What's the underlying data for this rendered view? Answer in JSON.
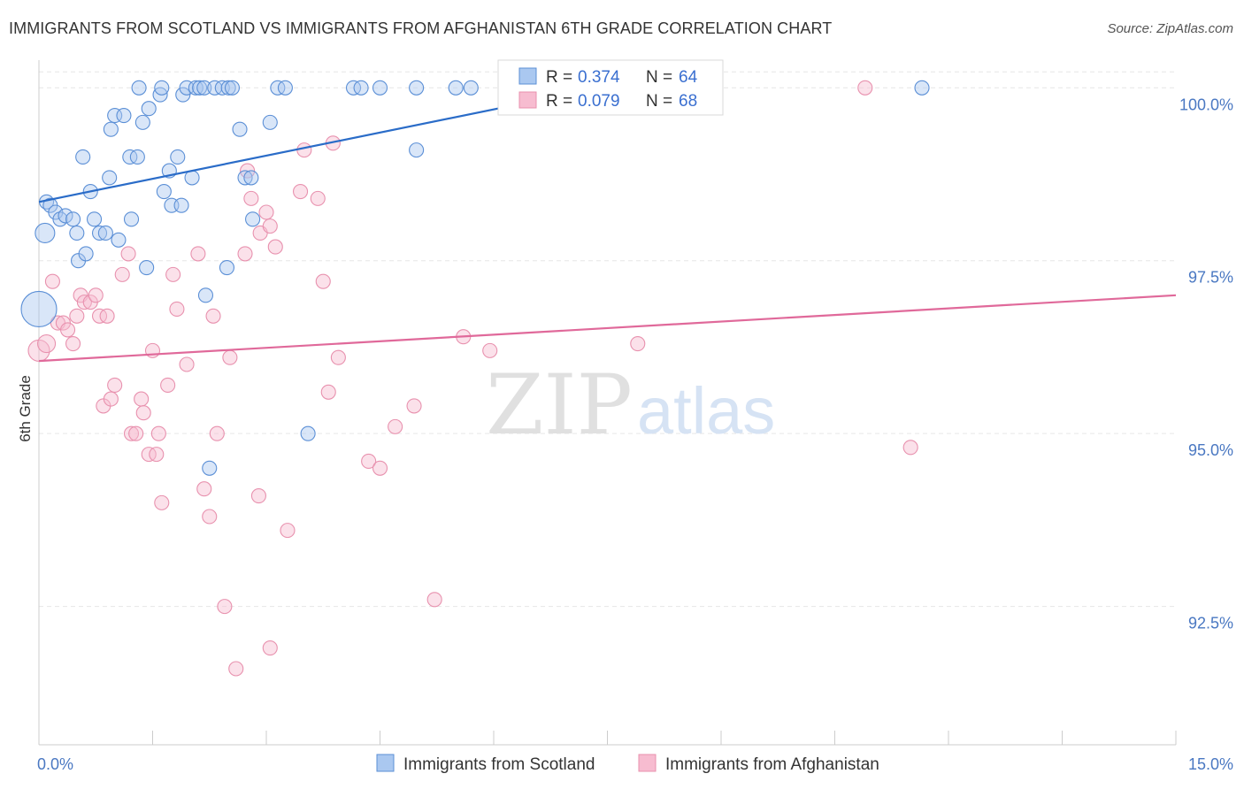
{
  "title": "IMMIGRANTS FROM SCOTLAND VS IMMIGRANTS FROM AFGHANISTAN 6TH GRADE CORRELATION CHART",
  "source": "Source: ZipAtlas.com",
  "watermark": {
    "zip": "ZIP",
    "atlas": "atlas"
  },
  "colors": {
    "scotland_fill": "#aac8f0",
    "scotland_stroke": "#5b8fd6",
    "scotland_line": "#2a6cc8",
    "afghanistan_fill": "#f7bcd0",
    "afghanistan_stroke": "#e891ae",
    "afghanistan_line": "#e0699a",
    "tick_text": "#4a78c2",
    "grid": "#e6e6e6"
  },
  "legend": {
    "rows": [
      {
        "r_label": "R =",
        "r_value": "0.374",
        "n_label": "N =",
        "n_value": "64"
      },
      {
        "r_label": "R =",
        "r_value": "0.079",
        "n_label": "N =",
        "n_value": "68"
      }
    ]
  },
  "chart_data": {
    "type": "scatter",
    "title": "IMMIGRANTS FROM SCOTLAND VS IMMIGRANTS FROM AFGHANISTAN 6TH GRADE CORRELATION CHART",
    "xlabel": "",
    "ylabel": "6th Grade",
    "xlim": [
      0,
      15
    ],
    "ylim": [
      90.5,
      100.4
    ],
    "x_tick_labels": [
      "0.0%",
      "15.0%"
    ],
    "y_ticks": [
      92.5,
      95.0,
      97.5,
      100.0
    ],
    "y_tick_labels": [
      "92.5%",
      "95.0%",
      "97.5%",
      "100.0%"
    ],
    "grid": true,
    "legend_position": "bottom",
    "series": [
      {
        "name": "Immigrants from Scotland",
        "trend": {
          "x": [
            0.0,
            7.4
          ],
          "y": [
            98.35,
            100.0
          ]
        },
        "points": [
          [
            0.0,
            96.8,
            20
          ],
          [
            0.08,
            97.9,
            11
          ],
          [
            0.1,
            98.35,
            8
          ],
          [
            0.15,
            98.3,
            8
          ],
          [
            0.22,
            98.2,
            8
          ],
          [
            0.28,
            98.1,
            8
          ],
          [
            0.35,
            98.15,
            8
          ],
          [
            0.45,
            98.1,
            8
          ],
          [
            0.5,
            97.9,
            8
          ],
          [
            0.52,
            97.5,
            8
          ],
          [
            0.58,
            99.0,
            8
          ],
          [
            0.62,
            97.6,
            8
          ],
          [
            0.68,
            98.5,
            8
          ],
          [
            0.73,
            98.1,
            8
          ],
          [
            0.8,
            97.9,
            8
          ],
          [
            0.88,
            97.9,
            8
          ],
          [
            0.93,
            98.7,
            8
          ],
          [
            0.95,
            99.4,
            8
          ],
          [
            1.0,
            99.6,
            8
          ],
          [
            1.05,
            97.8,
            8
          ],
          [
            1.12,
            99.6,
            8
          ],
          [
            1.2,
            99.0,
            8
          ],
          [
            1.22,
            98.1,
            8
          ],
          [
            1.3,
            99.0,
            8
          ],
          [
            1.32,
            100.0,
            8
          ],
          [
            1.37,
            99.5,
            8
          ],
          [
            1.42,
            97.4,
            8
          ],
          [
            1.45,
            99.7,
            8
          ],
          [
            1.6,
            99.9,
            8
          ],
          [
            1.62,
            100.0,
            8
          ],
          [
            1.65,
            98.5,
            8
          ],
          [
            1.72,
            98.8,
            8
          ],
          [
            1.75,
            98.3,
            8
          ],
          [
            1.83,
            99.0,
            8
          ],
          [
            1.88,
            98.3,
            8
          ],
          [
            1.9,
            99.9,
            8
          ],
          [
            1.95,
            100.0,
            8
          ],
          [
            2.02,
            98.7,
            8
          ],
          [
            2.07,
            100.0,
            8
          ],
          [
            2.12,
            100.0,
            8
          ],
          [
            2.18,
            100.0,
            8
          ],
          [
            2.2,
            97.0,
            8
          ],
          [
            2.25,
            94.5,
            8
          ],
          [
            2.32,
            100.0,
            8
          ],
          [
            2.42,
            100.0,
            8
          ],
          [
            2.48,
            97.4,
            8
          ],
          [
            2.5,
            100.0,
            8
          ],
          [
            2.55,
            100.0,
            8
          ],
          [
            2.65,
            99.4,
            8
          ],
          [
            2.72,
            98.7,
            8
          ],
          [
            2.8,
            98.7,
            8
          ],
          [
            2.82,
            98.1,
            8
          ],
          [
            3.05,
            99.5,
            8
          ],
          [
            3.15,
            100.0,
            8
          ],
          [
            3.25,
            100.0,
            8
          ],
          [
            3.55,
            95.0,
            8
          ],
          [
            4.15,
            100.0,
            8
          ],
          [
            4.25,
            100.0,
            8
          ],
          [
            4.5,
            100.0,
            8
          ],
          [
            4.98,
            100.0,
            8
          ],
          [
            4.98,
            99.1,
            8
          ],
          [
            5.5,
            100.0,
            8
          ],
          [
            5.7,
            100.0,
            8
          ],
          [
            11.65,
            100.0,
            8
          ]
        ]
      },
      {
        "name": "Immigrants from Afghanistan",
        "trend": {
          "x": [
            0.0,
            15.0
          ],
          "y": [
            96.05,
            97.0
          ]
        },
        "points": [
          [
            0.0,
            96.2,
            12
          ],
          [
            0.1,
            96.3,
            10
          ],
          [
            0.18,
            97.2,
            8
          ],
          [
            0.25,
            96.6,
            8
          ],
          [
            0.32,
            96.6,
            8
          ],
          [
            0.38,
            96.5,
            8
          ],
          [
            0.45,
            96.3,
            8
          ],
          [
            0.5,
            96.7,
            8
          ],
          [
            0.55,
            97.0,
            8
          ],
          [
            0.6,
            96.9,
            8
          ],
          [
            0.68,
            96.9,
            8
          ],
          [
            0.75,
            97.0,
            8
          ],
          [
            0.8,
            96.7,
            8
          ],
          [
            0.85,
            95.4,
            8
          ],
          [
            0.9,
            96.7,
            8
          ],
          [
            0.95,
            95.5,
            8
          ],
          [
            1.0,
            95.7,
            8
          ],
          [
            1.1,
            97.3,
            8
          ],
          [
            1.18,
            97.6,
            8
          ],
          [
            1.22,
            95.0,
            8
          ],
          [
            1.28,
            95.0,
            8
          ],
          [
            1.35,
            95.5,
            8
          ],
          [
            1.38,
            95.3,
            8
          ],
          [
            1.45,
            94.7,
            8
          ],
          [
            1.5,
            96.2,
            8
          ],
          [
            1.55,
            94.7,
            8
          ],
          [
            1.58,
            95.0,
            8
          ],
          [
            1.62,
            94.0,
            8
          ],
          [
            1.7,
            95.7,
            8
          ],
          [
            1.77,
            97.3,
            8
          ],
          [
            1.82,
            96.8,
            8
          ],
          [
            1.95,
            96.0,
            8
          ],
          [
            2.1,
            97.6,
            8
          ],
          [
            2.18,
            94.2,
            8
          ],
          [
            2.25,
            93.8,
            8
          ],
          [
            2.3,
            96.7,
            8
          ],
          [
            2.35,
            95.0,
            8
          ],
          [
            2.45,
            92.5,
            8
          ],
          [
            2.52,
            96.1,
            8
          ],
          [
            2.6,
            91.6,
            8
          ],
          [
            2.72,
            97.6,
            8
          ],
          [
            2.75,
            98.8,
            8
          ],
          [
            2.8,
            98.4,
            8
          ],
          [
            2.9,
            94.1,
            8
          ],
          [
            2.92,
            97.9,
            8
          ],
          [
            3.0,
            98.2,
            8
          ],
          [
            3.05,
            98.0,
            8
          ],
          [
            3.05,
            91.9,
            8
          ],
          [
            3.12,
            97.7,
            8
          ],
          [
            3.28,
            93.6,
            8
          ],
          [
            3.45,
            98.5,
            8
          ],
          [
            3.5,
            99.1,
            8
          ],
          [
            3.68,
            98.4,
            8
          ],
          [
            3.75,
            97.2,
            8
          ],
          [
            3.82,
            95.6,
            8
          ],
          [
            3.88,
            99.2,
            8
          ],
          [
            3.95,
            96.1,
            8
          ],
          [
            4.35,
            94.6,
            8
          ],
          [
            4.5,
            94.5,
            8
          ],
          [
            4.7,
            95.1,
            8
          ],
          [
            4.95,
            95.4,
            8
          ],
          [
            5.22,
            92.6,
            8
          ],
          [
            5.6,
            96.4,
            8
          ],
          [
            5.95,
            96.2,
            8
          ],
          [
            7.45,
            100.0,
            8
          ],
          [
            7.9,
            96.3,
            8
          ],
          [
            10.9,
            100.0,
            8
          ],
          [
            11.5,
            94.8,
            8
          ]
        ]
      }
    ]
  }
}
